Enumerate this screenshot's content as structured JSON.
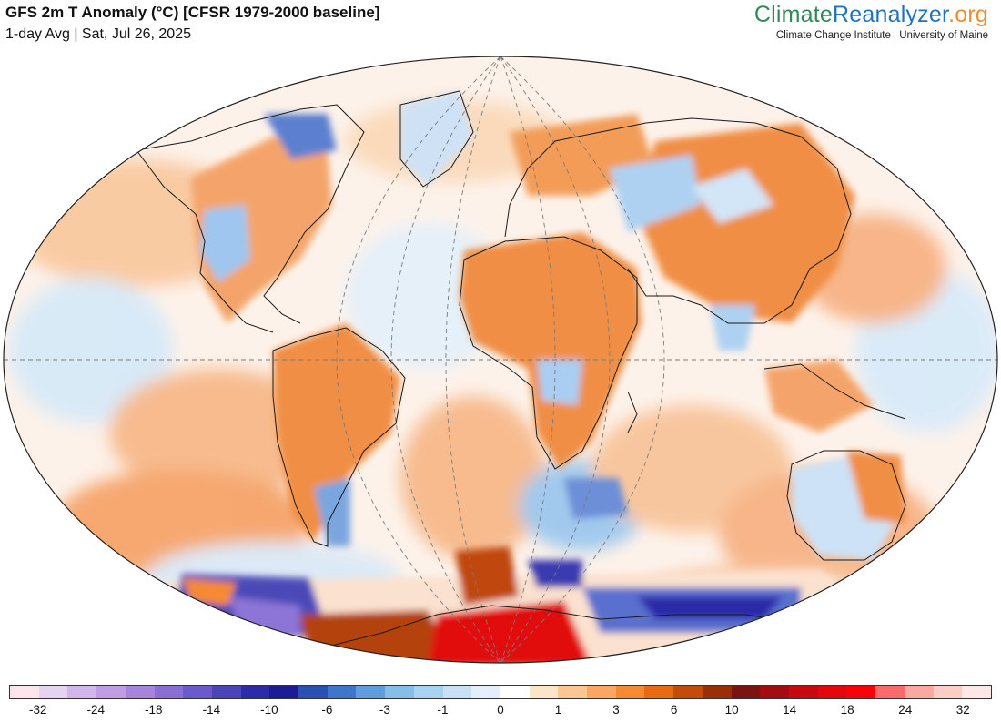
{
  "header": {
    "title": "GFS 2m T Anomaly (°C) [CFSR 1979-2000 baseline]",
    "subtitle": "1-day Avg | Sat, Jul 26, 2025"
  },
  "brand": {
    "part1": "Climate",
    "part2": "Reanalyzer",
    "part3": ".org",
    "tagline": "Climate Change Institute | University of Maine"
  },
  "colorbar": {
    "colors": [
      "#fbe4ec",
      "#e6d3ef",
      "#d2b6ea",
      "#bf9ce3",
      "#a784dc",
      "#8a6ed3",
      "#6a5acb",
      "#4a44b8",
      "#2c2ca8",
      "#1c1c96",
      "#2a50b4",
      "#3f76cc",
      "#5f9ddf",
      "#86bde9",
      "#a9d2f1",
      "#c6e0f6",
      "#e2effa",
      "#ffffff",
      "#fde3c8",
      "#fcc594",
      "#fba763",
      "#f68a33",
      "#e86b14",
      "#c44c0a",
      "#9a2f05",
      "#7a1410",
      "#a30d10",
      "#c70a10",
      "#e3080e",
      "#f7030a",
      "#f86b6b",
      "#fba8a0",
      "#fccdc3",
      "#fde8e6"
    ],
    "labels": [
      "-32",
      "-24",
      "-18",
      "-14",
      "-10",
      "-6",
      "-3",
      "-1",
      "0",
      "1",
      "3",
      "6",
      "10",
      "14",
      "18",
      "24",
      "32"
    ],
    "label_positions": [
      1,
      3,
      5,
      7,
      9,
      11,
      13,
      15,
      17,
      19,
      21,
      23,
      25,
      27,
      29,
      31,
      33
    ]
  }
}
